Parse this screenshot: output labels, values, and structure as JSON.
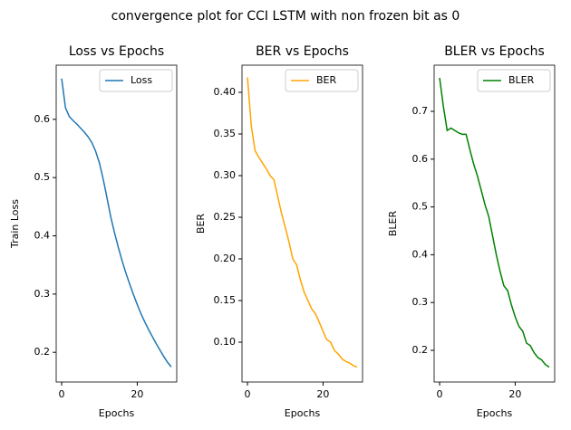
{
  "title": "convergence plot for CCI LSTM with non frozen bit as 0",
  "chart_data": [
    {
      "type": "line",
      "title": "Loss vs Epochs",
      "x_label": "Epochs",
      "y_label": "Train Loss",
      "x": [
        0,
        1,
        2,
        3,
        4,
        5,
        6,
        7,
        8,
        9,
        10,
        11,
        12,
        13,
        14,
        15,
        16,
        17,
        18,
        19,
        20,
        21,
        22,
        23,
        24,
        25,
        26,
        27,
        28,
        29
      ],
      "series": [
        {
          "name": "Loss",
          "color": "#1f77b4",
          "values": [
            0.67,
            0.62,
            0.605,
            0.598,
            0.592,
            0.585,
            0.578,
            0.57,
            0.56,
            0.545,
            0.525,
            0.497,
            0.465,
            0.432,
            0.405,
            0.38,
            0.357,
            0.336,
            0.317,
            0.299,
            0.282,
            0.266,
            0.252,
            0.239,
            0.227,
            0.215,
            0.204,
            0.193,
            0.183,
            0.175
          ]
        }
      ],
      "xlim": [
        -1.45,
        30.45
      ],
      "xticks": [
        0,
        20
      ],
      "ylim": [
        0.149,
        0.693
      ],
      "yticks": [
        0.2,
        0.3,
        0.4,
        0.5,
        0.6
      ],
      "legend": "upper right"
    },
    {
      "type": "line",
      "title": "BER vs Epochs",
      "x_label": "Epochs",
      "y_label": "BER",
      "x": [
        0,
        1,
        2,
        3,
        4,
        5,
        6,
        7,
        8,
        9,
        10,
        11,
        12,
        13,
        14,
        15,
        16,
        17,
        18,
        19,
        20,
        21,
        22,
        23,
        24,
        25,
        26,
        27,
        28,
        29
      ],
      "series": [
        {
          "name": "BER",
          "color": "#ffa500",
          "values": [
            0.418,
            0.36,
            0.33,
            0.322,
            0.315,
            0.308,
            0.3,
            0.295,
            0.275,
            0.255,
            0.238,
            0.22,
            0.2,
            0.193,
            0.175,
            0.16,
            0.15,
            0.14,
            0.134,
            0.124,
            0.113,
            0.103,
            0.1,
            0.09,
            0.086,
            0.08,
            0.077,
            0.075,
            0.072,
            0.07
          ]
        }
      ],
      "xlim": [
        -1.45,
        30.45
      ],
      "xticks": [
        0,
        20
      ],
      "ylim": [
        0.0522,
        0.4326
      ],
      "yticks": [
        {
          "value": 0.1,
          "label": "0.10"
        },
        0.15,
        {
          "value": 0.2,
          "label": "0.20"
        },
        0.25,
        {
          "value": 0.3,
          "label": "0.30"
        },
        0.35,
        {
          "value": 0.4,
          "label": "0.40"
        }
      ],
      "legend": "upper right"
    },
    {
      "type": "line",
      "title": "BLER vs Epochs",
      "x_label": "Epochs",
      "y_label": "BLER",
      "x": [
        0,
        1,
        2,
        3,
        4,
        5,
        6,
        7,
        8,
        9,
        10,
        11,
        12,
        13,
        14,
        15,
        16,
        17,
        18,
        19,
        20,
        21,
        22,
        23,
        24,
        25,
        26,
        27,
        28,
        29
      ],
      "series": [
        {
          "name": "BLER",
          "color": "#008000",
          "values": [
            0.77,
            0.71,
            0.66,
            0.665,
            0.66,
            0.655,
            0.652,
            0.652,
            0.62,
            0.59,
            0.565,
            0.535,
            0.505,
            0.48,
            0.44,
            0.4,
            0.365,
            0.335,
            0.325,
            0.295,
            0.27,
            0.25,
            0.24,
            0.215,
            0.21,
            0.195,
            0.185,
            0.18,
            0.17,
            0.165
          ]
        }
      ],
      "xlim": [
        -1.45,
        30.45
      ],
      "xticks": [
        0,
        20
      ],
      "ylim": [
        0.1337,
        0.7966
      ],
      "yticks": [
        0.2,
        0.3,
        0.4,
        0.5,
        0.6,
        0.7
      ],
      "legend": "upper right"
    }
  ]
}
